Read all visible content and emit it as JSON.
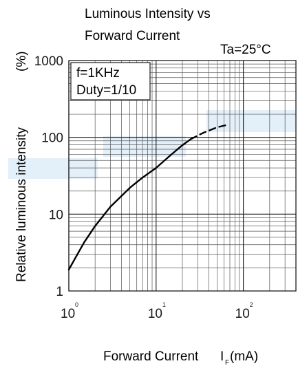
{
  "chart_data": {
    "type": "line",
    "title_lines": [
      "Luminous Intensity vs",
      "Forward Current"
    ],
    "condition": "Ta=25°C",
    "xlabel": {
      "main": "Forward Current",
      "symbol": "I",
      "subscript": "F",
      "unit": "(mA)"
    },
    "ylabel": {
      "main": "Relative luminous intensity",
      "unit": "(%)"
    },
    "x_scale": "log",
    "y_scale": "log",
    "xlim": [
      1,
      400
    ],
    "ylim": [
      1,
      1000
    ],
    "x_ticks": [
      {
        "value": 1,
        "base": "10",
        "exp": "0"
      },
      {
        "value": 10,
        "base": "10",
        "exp": "1"
      },
      {
        "value": 100,
        "base": "10",
        "exp": "2"
      }
    ],
    "y_ticks": [
      {
        "value": 1,
        "label": "1"
      },
      {
        "value": 10,
        "label": "10"
      },
      {
        "value": 100,
        "label": "100"
      },
      {
        "value": 1000,
        "label": "1000"
      }
    ],
    "grid": true,
    "annotation_box": [
      "f=1KHz",
      "Duty=1/10"
    ],
    "series": [
      {
        "style": "solid",
        "x": [
          1,
          1.5,
          2,
          3,
          5,
          7,
          10,
          15,
          20,
          25
        ],
        "y": [
          1.9,
          4.3,
          7.0,
          12.5,
          22,
          30,
          40,
          60,
          79,
          95
        ]
      },
      {
        "style": "dashed",
        "x": [
          25,
          35,
          50,
          65
        ],
        "y": [
          95,
          115,
          135,
          145
        ]
      }
    ]
  }
}
